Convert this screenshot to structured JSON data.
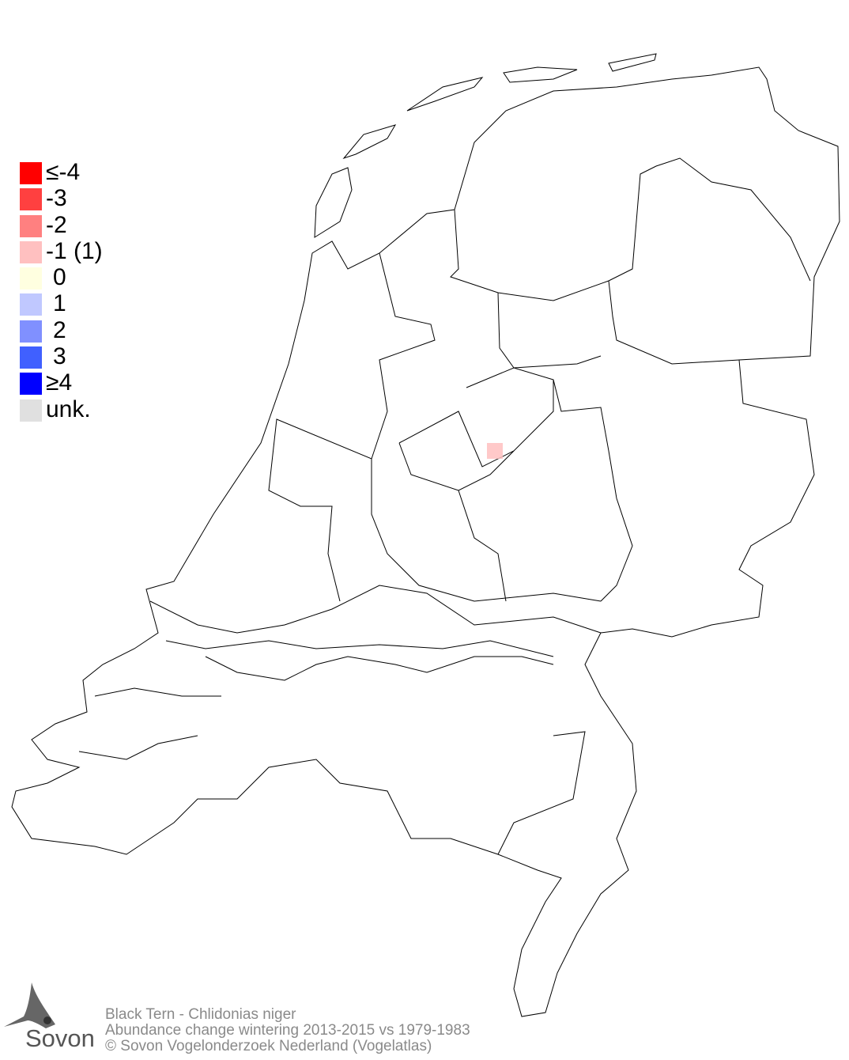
{
  "legend": {
    "items": [
      {
        "label": "≤-4",
        "color": "#ff0000"
      },
      {
        "label": "-3",
        "color": "#ff4040"
      },
      {
        "label": "-2",
        "color": "#ff8080"
      },
      {
        "label": "-1 (1)",
        "color": "#ffc0c0"
      },
      {
        "label": "0",
        "color": "#ffffe0"
      },
      {
        "label": "1",
        "color": "#c0c8ff"
      },
      {
        "label": "2",
        "color": "#8090ff"
      },
      {
        "label": "3",
        "color": "#4060ff"
      },
      {
        "label": "≥4",
        "color": "#0000ff"
      },
      {
        "label": "unk.",
        "color": "#e0e0e0"
      }
    ]
  },
  "map": {
    "region": "Netherlands",
    "highlighted_cells": [
      {
        "category": "-1",
        "color": "#ffc0c0"
      }
    ]
  },
  "footer": {
    "species": "Black Tern - Chlidonias niger",
    "subtitle": "Abundance change wintering  2013-2015 vs 1979-1983",
    "copyright": "© Sovon Vogelonderzoek Nederland (Vogelatlas)"
  },
  "logo": {
    "text": "Sovon"
  }
}
